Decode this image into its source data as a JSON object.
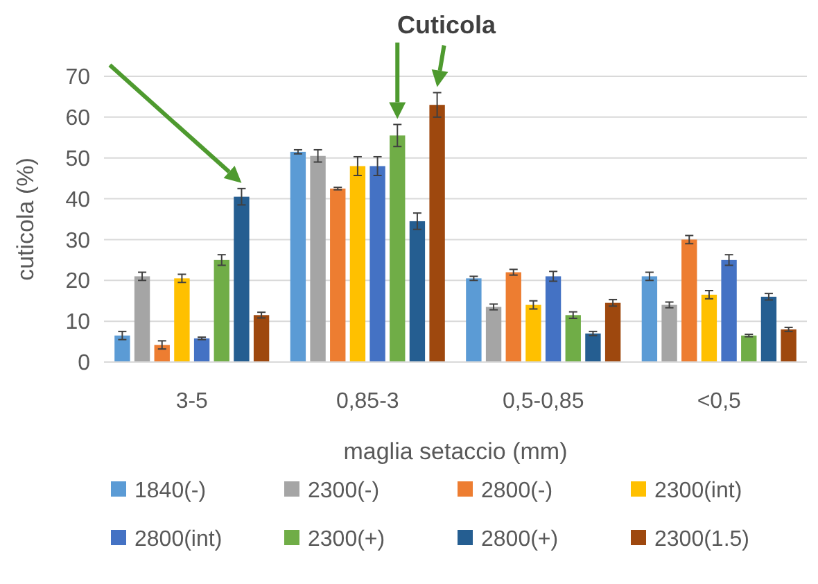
{
  "chart_data": {
    "type": "bar",
    "title": "Cuticola",
    "xlabel": "maglia setaccio (mm)",
    "ylabel": "cuticola (%)",
    "categories": [
      "3-5",
      "0,85-3",
      "0,5-0,85",
      "<0,5"
    ],
    "series": [
      {
        "name": "1840(-)",
        "color": "#5b9bd5",
        "values": [
          6.5,
          51.5,
          20.5,
          21
        ],
        "errors": [
          1,
          0.5,
          0.5,
          1
        ]
      },
      {
        "name": "2300(-)",
        "color": "#a5a5a5",
        "values": [
          21,
          50.5,
          13.5,
          14
        ],
        "errors": [
          1,
          1.5,
          0.7,
          0.7
        ]
      },
      {
        "name": "2800(-)",
        "color": "#ed7d31",
        "values": [
          4.2,
          42.5,
          22,
          30
        ],
        "errors": [
          1,
          0.3,
          0.7,
          1
        ]
      },
      {
        "name": "2300(int)",
        "color": "#ffc000",
        "values": [
          20.5,
          48,
          14,
          16.5
        ],
        "errors": [
          1,
          2.3,
          1,
          1
        ]
      },
      {
        "name": "2800(int)",
        "color": "#4472c4",
        "values": [
          5.8,
          48,
          21,
          25
        ],
        "errors": [
          0.3,
          2.3,
          1.2,
          1.3
        ]
      },
      {
        "name": "2300(+)",
        "color": "#70ad47",
        "values": [
          25,
          55.5,
          11.5,
          6.5
        ],
        "errors": [
          1.3,
          2.7,
          0.8,
          0.3
        ]
      },
      {
        "name": "2800(+)",
        "color": "#255e91",
        "values": [
          40.5,
          34.5,
          7,
          16
        ],
        "errors": [
          2,
          2,
          0.5,
          0.8
        ]
      },
      {
        "name": "2300(1.5)",
        "color": "#9e480e",
        "values": [
          11.5,
          63,
          14.5,
          8
        ],
        "errors": [
          0.7,
          3,
          0.8,
          0.5
        ]
      }
    ],
    "ylim": [
      0,
      70
    ],
    "yticks": [
      0,
      10,
      20,
      30,
      40,
      50,
      60,
      70
    ],
    "grid": "y",
    "legend": "bottom"
  }
}
